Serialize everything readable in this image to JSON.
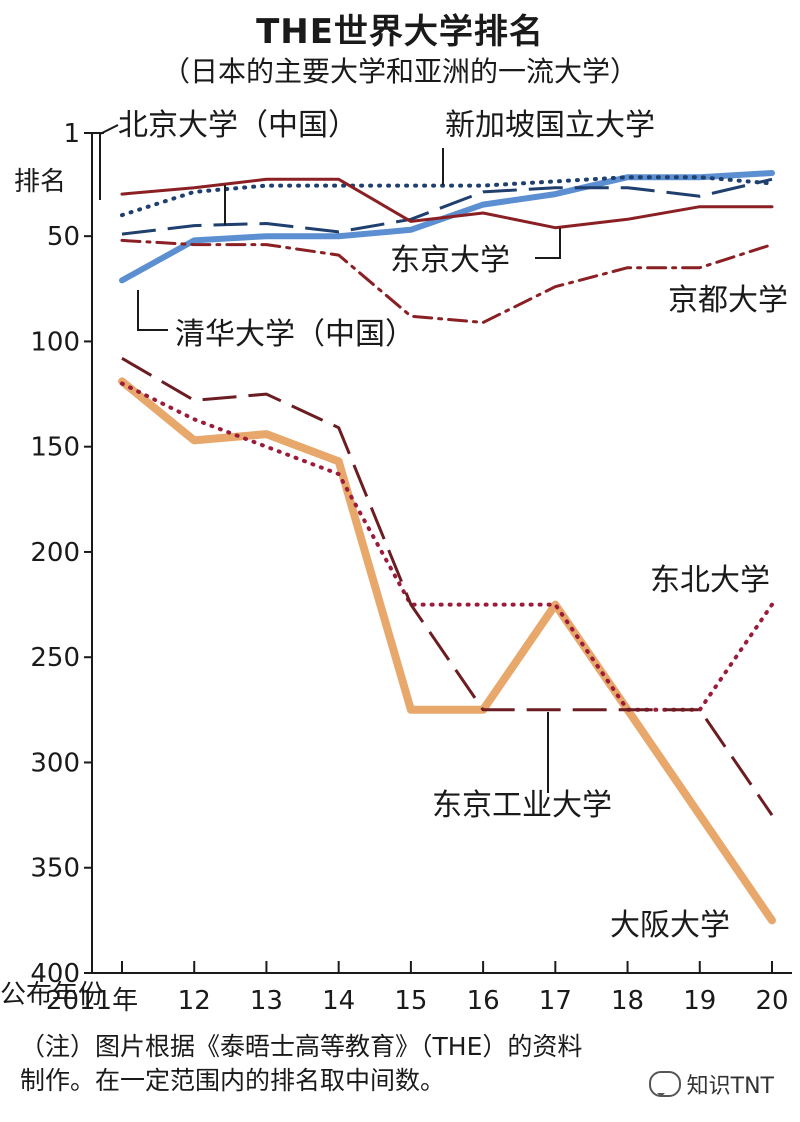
{
  "title": "THE世界大学排名",
  "subtitle": "（日本的主要大学和亚洲的一流大学）",
  "watermark": "知识TNT",
  "note": {
    "line1": "（注）图片根据《泰晤士高等教育》（THE）的资料",
    "line2": "制作。在一定范围内的排名取中间数。"
  },
  "chart_data": {
    "type": "line",
    "title": "THE世界大学排名",
    "ylabel": "排名",
    "xlabel_prefix": "公布年份",
    "x_tick_labels": [
      "2011年",
      "12",
      "13",
      "14",
      "15",
      "16",
      "17",
      "18",
      "19",
      "20"
    ],
    "x": [
      2011,
      2012,
      2013,
      2014,
      2015,
      2016,
      2017,
      2018,
      2019,
      2020
    ],
    "y_ticks": [
      1,
      50,
      100,
      150,
      200,
      250,
      300,
      350,
      400
    ],
    "ylim": [
      1,
      400
    ],
    "y_inverted": true,
    "series": [
      {
        "name": "北京大学（中国）",
        "label": "北京大学（中国）",
        "color": "#1f3f6e",
        "style": "longdash",
        "values": [
          49,
          45,
          44,
          48,
          42,
          29,
          27,
          27,
          31,
          23
        ]
      },
      {
        "name": "新加坡国立大学",
        "label": "新加坡国立大学",
        "color": "#1f3f6e",
        "style": "dotted",
        "values": [
          40,
          29,
          26,
          26,
          26,
          26,
          24,
          22,
          22,
          25
        ]
      },
      {
        "name": "东京大学",
        "label": "东京大学",
        "color": "#8a1f24",
        "style": "solid",
        "values": [
          30,
          27,
          23,
          23,
          43,
          39,
          46,
          42,
          36,
          36
        ]
      },
      {
        "name": "清华大学（中国）",
        "label": "清华大学（中国）",
        "color": "#5b8fd1",
        "style": "thick",
        "values": [
          71,
          52,
          50,
          50,
          47,
          35,
          30,
          22,
          22,
          20
        ]
      },
      {
        "name": "京都大学",
        "label": "京都大学",
        "color": "#8a1f24",
        "style": "dashdot",
        "values": [
          52,
          54,
          54,
          59,
          88,
          91,
          74,
          65,
          65,
          54
        ]
      },
      {
        "name": "东北大学",
        "label": "东北大学",
        "color": "#9b1b3a",
        "style": "dotted",
        "values": [
          120,
          137,
          150,
          163,
          225,
          225,
          225,
          275,
          275,
          225
        ]
      },
      {
        "name": "东京工业大学",
        "label": "东京工业大学",
        "color": "#6b1d22",
        "style": "longdash",
        "values": [
          108,
          128,
          125,
          141,
          225,
          275,
          275,
          275,
          275,
          325
        ]
      },
      {
        "name": "大阪大学",
        "label": "大阪大学",
        "color": "#e8a86b",
        "style": "thickorange",
        "values": [
          119,
          147,
          144,
          157,
          275,
          275,
          225,
          275,
          325,
          375
        ]
      }
    ]
  }
}
